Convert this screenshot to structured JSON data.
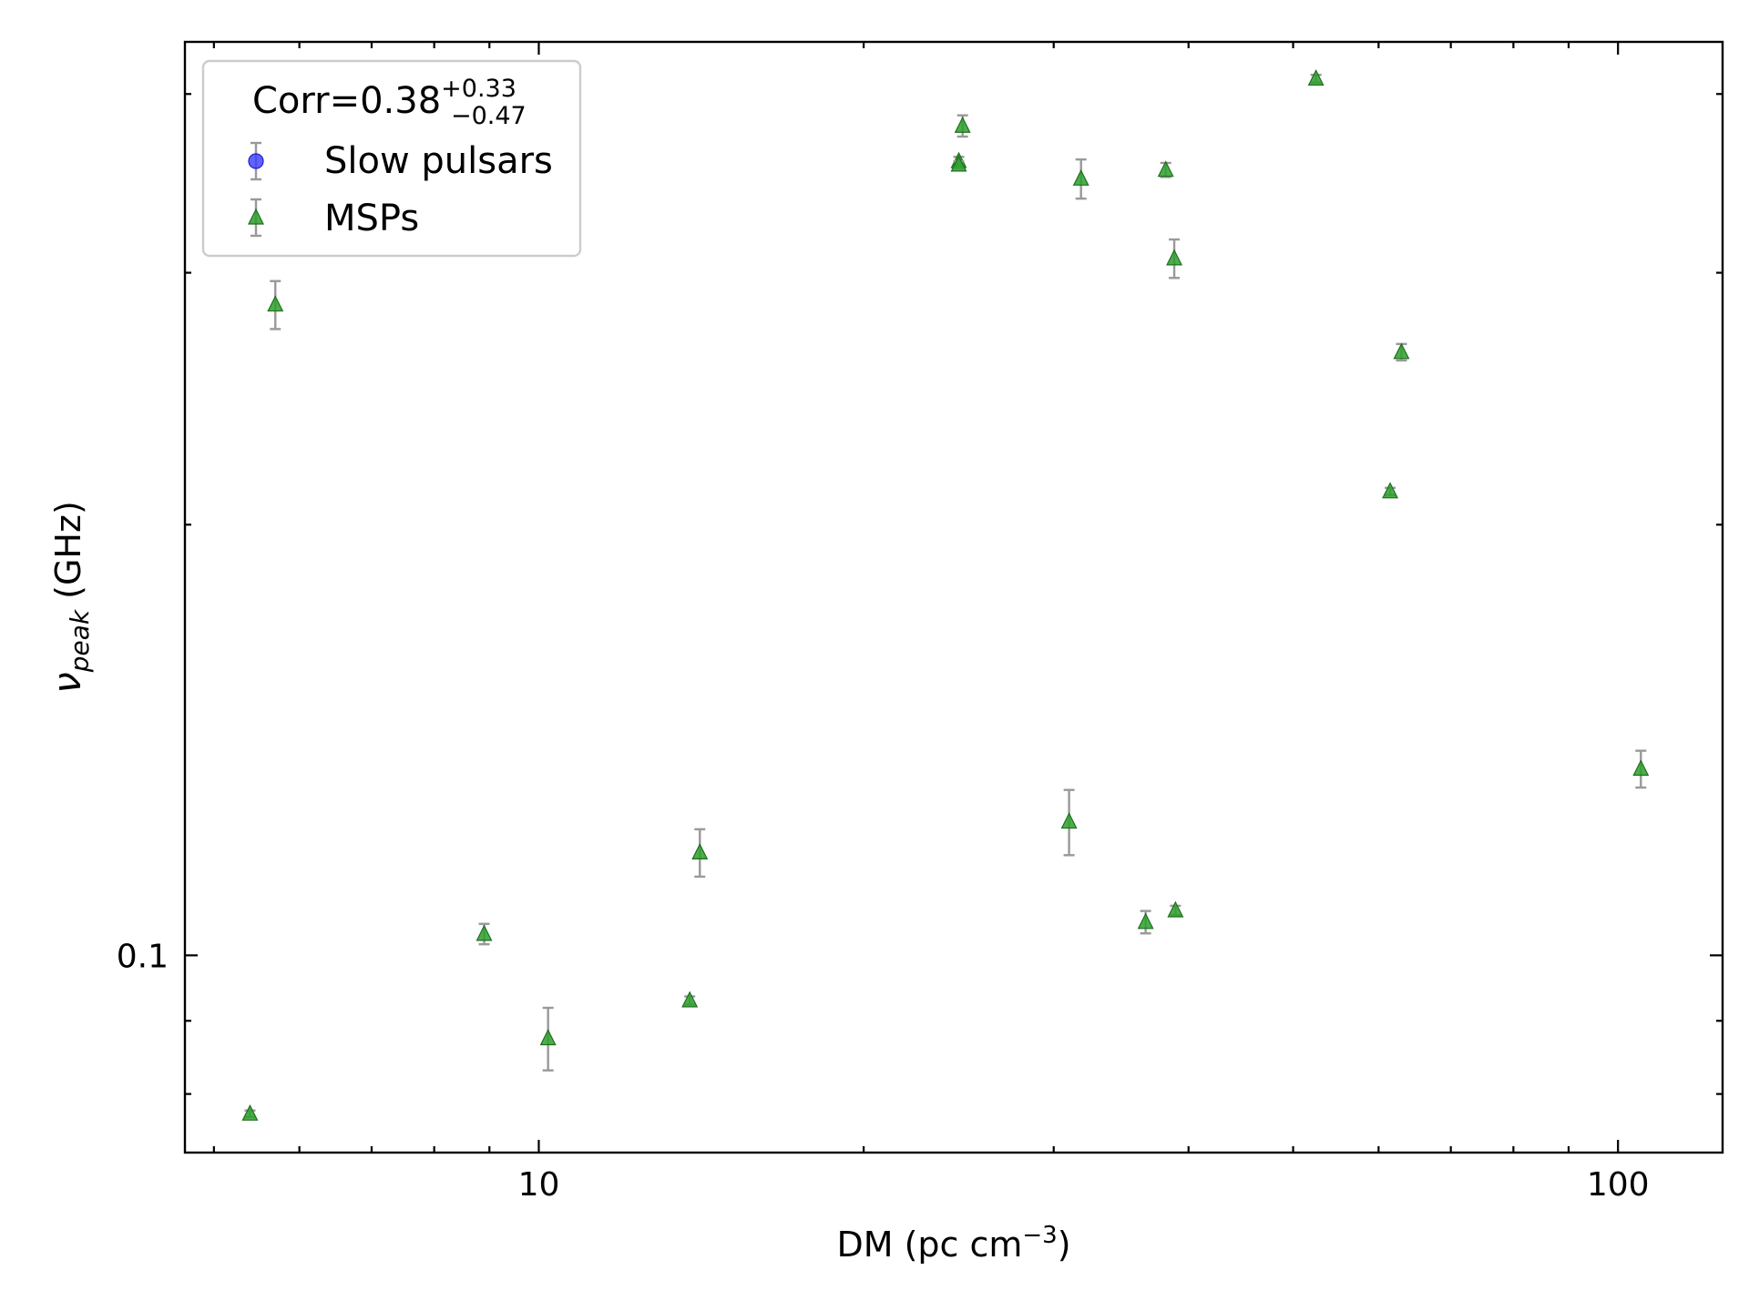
{
  "chart_data": {
    "type": "scatter",
    "xlabel": {
      "base": "DM (pc cm",
      "sup": "−3",
      "tail": ")"
    },
    "ylabel": {
      "base": "ν",
      "sub": "peak",
      "tail": " (GHz)"
    },
    "xscale": "log",
    "yscale": "log",
    "xlim": [
      4.7,
      125
    ],
    "ylim": [
      0.0728,
      0.435
    ],
    "x_ticks": [
      10,
      100
    ],
    "x_tick_labels": [
      "10",
      "100"
    ],
    "y_ticks": [
      0.1
    ],
    "y_tick_labels": [
      "0.1"
    ],
    "grid": false,
    "legend": {
      "position": "top-left",
      "title": {
        "base": "Corr=0.38",
        "sup": "+0.33",
        "sub": "−0.47"
      }
    },
    "series": [
      {
        "name": "Slow pulsars",
        "marker": "circle",
        "color": "#3b3bff",
        "points": []
      },
      {
        "name": "MSPs",
        "marker": "triangle",
        "color": "#2ca02c",
        "points": [
          {
            "x": 5.4,
            "y": 0.0775,
            "err": 0.0004
          },
          {
            "x": 5.7,
            "y": 0.285,
            "err": 0.011
          },
          {
            "x": 8.9,
            "y": 0.1035,
            "err": 0.0017
          },
          {
            "x": 10.2,
            "y": 0.0875,
            "err": 0.0044
          },
          {
            "x": 13.8,
            "y": 0.093,
            "err": 0.0006
          },
          {
            "x": 14.1,
            "y": 0.118,
            "err": 0.0045
          },
          {
            "x": 24.5,
            "y": 0.359,
            "err": 0.0025
          },
          {
            "x": 24.5,
            "y": 0.357,
            "err": 0.002
          },
          {
            "x": 24.7,
            "y": 0.38,
            "err": 0.0065
          },
          {
            "x": 31,
            "y": 0.124,
            "err": 0.0065
          },
          {
            "x": 31.8,
            "y": 0.349,
            "err": 0.011
          },
          {
            "x": 36.5,
            "y": 0.1055,
            "err": 0.0019
          },
          {
            "x": 38.1,
            "y": 0.354,
            "err": 0.004
          },
          {
            "x": 38.8,
            "y": 0.307,
            "err": 0.0095
          },
          {
            "x": 38.9,
            "y": 0.1075,
            "err": 0.0008
          },
          {
            "x": 52.5,
            "y": 0.41,
            "err": 0.0025
          },
          {
            "x": 61.5,
            "y": 0.211,
            "err": 0.0012
          },
          {
            "x": 63,
            "y": 0.264,
            "err": 0.0035
          },
          {
            "x": 105,
            "y": 0.135,
            "err": 0.004
          }
        ]
      }
    ]
  }
}
